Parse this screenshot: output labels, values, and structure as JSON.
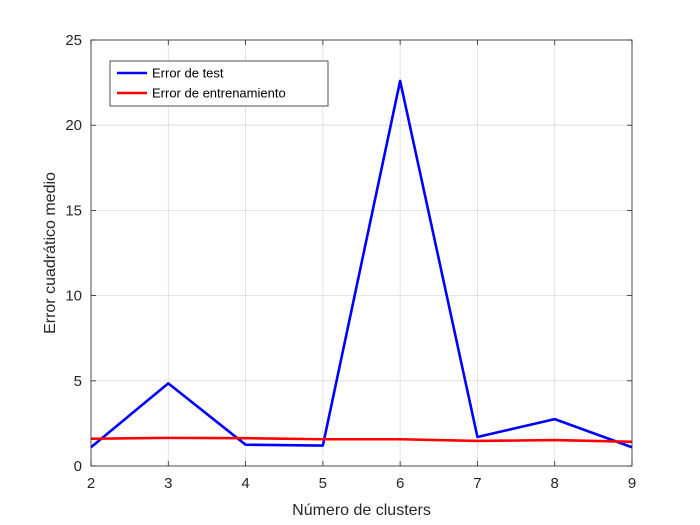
{
  "chart_data": {
    "type": "line",
    "title": "",
    "xlabel": "Número de clusters",
    "ylabel": "Error cuadrático medio",
    "xlim": [
      2,
      9
    ],
    "ylim": [
      0,
      25
    ],
    "xticks": [
      2,
      3,
      4,
      5,
      6,
      7,
      8,
      9
    ],
    "yticks": [
      0,
      5,
      10,
      15,
      20,
      25
    ],
    "grid": true,
    "legend_position": "top-left",
    "x": [
      2,
      3,
      4,
      5,
      6,
      7,
      8,
      9
    ],
    "series": [
      {
        "name": "Error de test",
        "color": "#0000ff",
        "values": [
          1.1,
          4.85,
          1.25,
          1.2,
          22.6,
          1.7,
          2.75,
          1.1
        ]
      },
      {
        "name": "Error de entrenamiento",
        "color": "#ff0000",
        "values": [
          1.6,
          1.65,
          1.63,
          1.57,
          1.57,
          1.47,
          1.52,
          1.42
        ]
      }
    ]
  }
}
